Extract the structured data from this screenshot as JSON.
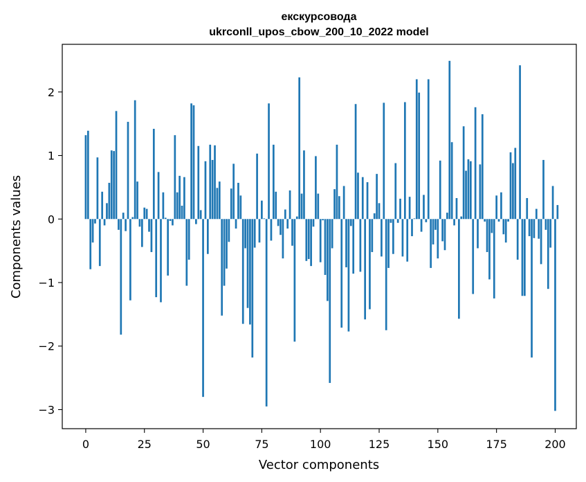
{
  "chart_data": {
    "type": "bar",
    "title_line1": "екскурсовода",
    "title_line2": "ukrconll_upos_cbow_200_10_2022 model",
    "xlabel": "Vector components",
    "ylabel": "Components values",
    "xlim": [
      -10,
      209
    ],
    "ylim": [
      -3.3,
      2.75
    ],
    "x_ticks": [
      0,
      25,
      50,
      75,
      100,
      125,
      150,
      175,
      200
    ],
    "y_ticks": [
      -3,
      -2,
      -1,
      0,
      1,
      2
    ],
    "x_tick_labels": [
      "0",
      "25",
      "50",
      "75",
      "100",
      "125",
      "150",
      "175",
      "200"
    ],
    "y_tick_labels": [
      "−3",
      "−2",
      "−1",
      "0",
      "1",
      "2"
    ],
    "bar_color": "#1f77b4",
    "grid": false,
    "values": [
      1.32,
      1.39,
      -0.79,
      -0.37,
      -0.07,
      0.97,
      -0.74,
      0.43,
      -0.1,
      0.25,
      0.57,
      1.08,
      1.07,
      1.7,
      -0.17,
      -1.82,
      0.1,
      -0.19,
      1.53,
      -1.28,
      0.03,
      1.87,
      0.59,
      -0.12,
      -0.44,
      0.18,
      0.16,
      -0.2,
      -0.52,
      1.42,
      -1.23,
      0.74,
      -1.31,
      0.42,
      0.02,
      -0.89,
      -0.03,
      -0.1,
      1.32,
      0.42,
      0.68,
      0.21,
      0.66,
      -1.05,
      -0.64,
      1.82,
      1.79,
      -0.08,
      1.15,
      0.14,
      -2.8,
      0.91,
      -0.55,
      1.17,
      0.93,
      1.16,
      0.49,
      0.59,
      -1.52,
      -1.05,
      -0.78,
      -0.36,
      0.48,
      0.87,
      -0.15,
      0.57,
      0.37,
      -1.65,
      -0.46,
      -1.4,
      -1.66,
      -2.18,
      -0.45,
      1.03,
      -0.37,
      0.29,
      0.01,
      -2.95,
      1.82,
      -0.34,
      1.17,
      0.43,
      -0.11,
      -0.25,
      -0.62,
      0.15,
      -0.15,
      0.45,
      -0.42,
      -1.93,
      0.04,
      2.23,
      0.4,
      1.08,
      -0.66,
      -0.63,
      -0.74,
      -0.12,
      0.99,
      0.4,
      -0.68,
      -0.02,
      -0.88,
      -1.29,
      -2.58,
      -0.46,
      0.47,
      1.17,
      0.36,
      -1.71,
      0.52,
      -0.76,
      -1.77,
      -0.11,
      -0.86,
      1.81,
      0.73,
      -0.83,
      0.66,
      -1.58,
      0.58,
      -1.42,
      -0.52,
      0.09,
      0.71,
      0.25,
      -0.59,
      1.83,
      -1.75,
      -0.77,
      -0.06,
      -0.55,
      0.88,
      -0.06,
      0.32,
      -0.59,
      1.84,
      -0.67,
      0.35,
      -0.27,
      0.01,
      2.2,
      1.99,
      -0.2,
      0.38,
      -0.05,
      2.2,
      -0.77,
      -0.4,
      -0.17,
      -0.62,
      0.92,
      -0.35,
      -0.49,
      0.1,
      2.49,
      1.21,
      -0.1,
      0.33,
      -1.57,
      0.04,
      1.46,
      0.76,
      0.94,
      0.91,
      -1.18,
      1.76,
      -0.46,
      0.86,
      1.65,
      -0.04,
      -0.52,
      -0.95,
      -0.22,
      -1.25,
      0.37,
      -0.04,
      0.42,
      -0.24,
      -0.37,
      -0.04,
      1.05,
      0.88,
      1.12,
      -0.64,
      2.42,
      -1.21,
      -1.21,
      0.33,
      -0.27,
      -2.18,
      -0.3,
      0.16,
      -0.31,
      -0.71,
      0.93,
      -0.17,
      -1.1,
      -0.45,
      0.52,
      -3.02,
      0.22
    ]
  }
}
